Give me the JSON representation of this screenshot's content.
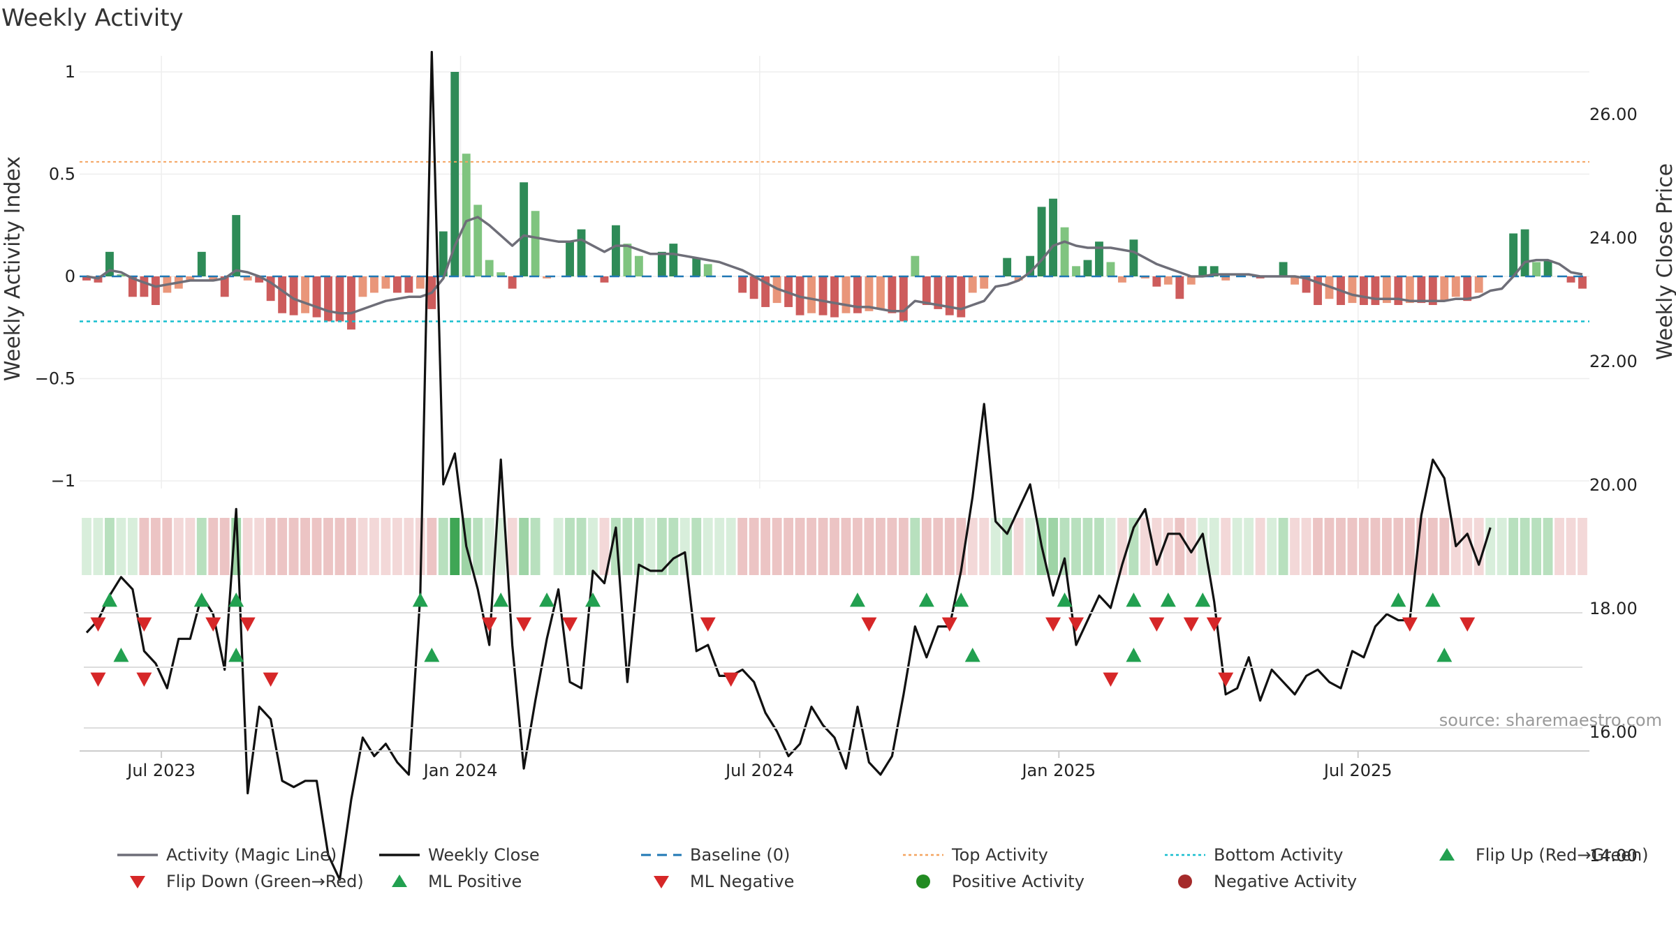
{
  "title": "Weekly Activity",
  "source": "source: sharemaestro.com",
  "colors": {
    "green_dark": "#2e8b57",
    "green_light": "#7fc47f",
    "red_dark": "#cd5c5c",
    "red_light": "#e9967a",
    "magic_line": "#6e6e78",
    "close_line": "#111111",
    "baseline": "#1f77b4",
    "top_activity": "#f4a460",
    "bottom_activity": "#17becf",
    "marker_up": "#22a050",
    "marker_down": "#d62728",
    "legend_pos": "#228b22",
    "legend_neg": "#a52a2a",
    "grid": "#eeeeee",
    "axis_text": "#222222",
    "source_text": "#999999"
  },
  "chart_data": {
    "type": "bar",
    "title": "Weekly Activity",
    "ylabel": "Weekly Activity Index",
    "y2label": "Weekly Close Price",
    "ylim": [
      -1.1,
      1.1
    ],
    "y2lim": [
      13.3,
      27.2
    ],
    "yticks": [
      1,
      0.5,
      0,
      -0.5,
      -1
    ],
    "ytick_labels": [
      "1",
      "0.5",
      "0",
      "−0.5",
      "−1"
    ],
    "y2ticks": [
      26,
      24,
      22,
      20,
      18,
      16,
      14
    ],
    "y2tick_labels": [
      "26.00",
      "24.00",
      "22.00",
      "20.00",
      "18.00",
      "16.00",
      "14.00"
    ],
    "xtick_labels": [
      "Jul 2023",
      "Jan 2024",
      "Jul 2024",
      "Jan 2025",
      "Jul 2025"
    ],
    "xtick_weeks": [
      6.5,
      32.5,
      58.5,
      84.5,
      110.5
    ],
    "top_activity": 0.56,
    "bottom_activity": -0.22,
    "baseline": 0,
    "activity": [
      -0.02,
      -0.03,
      0.12,
      0.01,
      -0.1,
      -0.1,
      -0.14,
      -0.08,
      -0.06,
      -0.02,
      0.12,
      -0.02,
      -0.1,
      0.3,
      -0.02,
      -0.03,
      -0.12,
      -0.18,
      -0.19,
      -0.18,
      -0.2,
      -0.22,
      -0.22,
      -0.26,
      -0.1,
      -0.08,
      -0.06,
      -0.08,
      -0.08,
      -0.06,
      -0.16,
      0.22,
      1.0,
      0.6,
      0.35,
      0.08,
      0.02,
      -0.06,
      0.46,
      0.32,
      -0.01,
      0.0,
      0.17,
      0.23,
      0.0,
      -0.03,
      0.25,
      0.16,
      0.1,
      0.0,
      0.12,
      0.16,
      0.0,
      0.09,
      0.06,
      0.0,
      0.0,
      -0.08,
      -0.11,
      -0.15,
      -0.13,
      -0.15,
      -0.19,
      -0.18,
      -0.19,
      -0.2,
      -0.18,
      -0.18,
      -0.17,
      -0.16,
      -0.18,
      -0.22,
      0.1,
      -0.14,
      -0.16,
      -0.19,
      -0.2,
      -0.08,
      -0.06,
      0.0,
      0.09,
      -0.02,
      0.1,
      0.34,
      0.38,
      0.24,
      0.05,
      0.08,
      0.17,
      0.07,
      -0.03,
      0.18,
      -0.01,
      -0.05,
      -0.04,
      -0.11,
      -0.04,
      0.05,
      0.05,
      -0.02,
      0.0,
      0.0,
      -0.01,
      0.0,
      0.07,
      -0.04,
      -0.08,
      -0.14,
      -0.11,
      -0.14,
      -0.13,
      -0.14,
      -0.14,
      -0.13,
      -0.14,
      -0.13,
      -0.13,
      -0.14,
      -0.12,
      -0.1,
      -0.12,
      -0.08,
      0.0,
      0.0,
      0.21,
      0.23,
      0.07,
      0.08,
      0.0,
      -0.03,
      -0.06
    ],
    "magic_line": [
      0.0,
      -0.01,
      0.03,
      0.02,
      -0.01,
      -0.03,
      -0.05,
      -0.04,
      -0.03,
      -0.02,
      -0.02,
      -0.02,
      -0.01,
      0.03,
      0.02,
      0.0,
      -0.03,
      -0.07,
      -0.11,
      -0.13,
      -0.15,
      -0.17,
      -0.18,
      -0.18,
      -0.16,
      -0.14,
      -0.12,
      -0.11,
      -0.1,
      -0.1,
      -0.08,
      -0.01,
      0.15,
      0.27,
      0.29,
      0.25,
      0.2,
      0.15,
      0.2,
      0.19,
      0.18,
      0.17,
      0.17,
      0.18,
      0.15,
      0.12,
      0.15,
      0.15,
      0.13,
      0.11,
      0.11,
      0.11,
      0.1,
      0.09,
      0.08,
      0.07,
      0.05,
      0.03,
      0.0,
      -0.03,
      -0.06,
      -0.08,
      -0.1,
      -0.11,
      -0.12,
      -0.13,
      -0.14,
      -0.15,
      -0.15,
      -0.16,
      -0.17,
      -0.17,
      -0.12,
      -0.13,
      -0.14,
      -0.15,
      -0.16,
      -0.14,
      -0.12,
      -0.05,
      -0.04,
      -0.02,
      0.02,
      0.08,
      0.15,
      0.17,
      0.15,
      0.14,
      0.14,
      0.14,
      0.13,
      0.12,
      0.09,
      0.06,
      0.04,
      0.02,
      0.0,
      0.0,
      0.01,
      0.01,
      0.01,
      0.01,
      0.0,
      0.0,
      0.0,
      0.0,
      -0.01,
      -0.03,
      -0.05,
      -0.07,
      -0.09,
      -0.1,
      -0.11,
      -0.11,
      -0.11,
      -0.12,
      -0.12,
      -0.12,
      -0.12,
      -0.11,
      -0.11,
      -0.1,
      -0.07,
      -0.06,
      0.0,
      0.07,
      0.08,
      0.08,
      0.06,
      0.02,
      0.01
    ],
    "close": [
      17.6,
      17.8,
      18.2,
      18.5,
      18.3,
      17.3,
      17.1,
      16.7,
      17.5,
      17.5,
      18.2,
      17.9,
      17.0,
      19.6,
      15.0,
      16.4,
      16.2,
      15.2,
      15.1,
      15.2,
      15.2,
      14.0,
      13.6,
      14.9,
      15.9,
      15.6,
      15.8,
      15.5,
      15.3,
      18.2,
      27.0,
      20.0,
      20.5,
      19.0,
      18.3,
      17.4,
      20.4,
      17.4,
      15.4,
      16.5,
      17.5,
      18.3,
      16.8,
      16.7,
      18.6,
      18.4,
      19.3,
      16.8,
      18.7,
      18.6,
      18.6,
      18.8,
      18.9,
      17.3,
      17.4,
      16.9,
      16.9,
      17.0,
      16.8,
      16.3,
      16.0,
      15.6,
      15.8,
      16.4,
      16.1,
      15.9,
      15.4,
      16.4,
      15.5,
      15.3,
      15.6,
      16.6,
      17.7,
      17.2,
      17.7,
      17.7,
      18.6,
      19.8,
      21.3,
      19.4,
      19.2,
      19.6,
      20.0,
      19.0,
      18.2,
      18.8,
      17.4,
      17.8,
      18.2,
      18.0,
      18.7,
      19.3,
      19.6,
      18.7,
      19.2,
      19.2,
      18.9,
      19.2,
      18.1,
      16.6,
      16.7,
      17.2,
      16.5,
      17.0,
      16.8,
      16.6,
      16.9,
      17.0,
      16.8,
      16.7,
      17.3,
      17.2,
      17.7,
      17.9,
      17.8,
      17.8,
      19.5,
      20.4,
      20.1,
      19.0,
      19.2,
      18.7,
      19.3
    ],
    "strip_shades": [
      1,
      1,
      2,
      1,
      1,
      -2,
      -2,
      -2,
      -1,
      -1,
      2,
      -2,
      -2,
      3,
      -1,
      -1,
      -2,
      -2,
      -2,
      -2,
      -2,
      -2,
      -2,
      -2,
      -1,
      -1,
      -1,
      -1,
      -1,
      -1,
      -2,
      2,
      4,
      3,
      2,
      1,
      1,
      -1,
      3,
      2,
      0,
      1,
      2,
      2,
      1,
      -1,
      2,
      2,
      2,
      1,
      2,
      2,
      1,
      2,
      1,
      1,
      1,
      -2,
      -2,
      -2,
      -2,
      -2,
      -2,
      -2,
      -2,
      -2,
      -2,
      -2,
      -2,
      -2,
      -2,
      -2,
      2,
      -2,
      -2,
      -2,
      -2,
      -1,
      -1,
      1,
      2,
      -1,
      1,
      3,
      3,
      2,
      2,
      2,
      2,
      1,
      -1,
      2,
      -1,
      -1,
      -1,
      -2,
      -1,
      1,
      1,
      -1,
      1,
      1,
      -1,
      1,
      2,
      -1,
      -1,
      -2,
      -2,
      -2,
      -2,
      -2,
      -2,
      -2,
      -2,
      -2,
      -2,
      -2,
      -2,
      -1,
      -1,
      -1,
      1,
      1,
      2,
      2,
      2,
      2,
      -1,
      -1,
      -1
    ],
    "flip_up_weeks": [
      2,
      10,
      13,
      29,
      36,
      40,
      44,
      67,
      73,
      76,
      85,
      91,
      94,
      97,
      114,
      117
    ],
    "flip_down_weeks": [
      1,
      5,
      11,
      14,
      35,
      38,
      42,
      54,
      68,
      75,
      84,
      86,
      93,
      96,
      98,
      115,
      120
    ],
    "ml_positive_weeks": [
      3,
      13,
      30,
      77,
      91,
      118
    ],
    "ml_negative_weeks": [
      1,
      5,
      16,
      56,
      89,
      99
    ]
  },
  "legend": [
    {
      "label": "Activity (Magic Line)",
      "kind": "line",
      "color": "#6e6e78"
    },
    {
      "label": "Weekly Close",
      "kind": "line",
      "color": "#111111"
    },
    {
      "label": "Baseline (0)",
      "kind": "dash",
      "color": "#1f77b4"
    },
    {
      "label": "Top Activity",
      "kind": "dot",
      "color": "#f4a460"
    },
    {
      "label": "Bottom Activity",
      "kind": "dot",
      "color": "#17becf"
    },
    {
      "label": "Flip Up (Red→Green)",
      "kind": "up",
      "color": "#22a050"
    },
    {
      "label": "Flip Down (Green→Red)",
      "kind": "down",
      "color": "#d62728"
    },
    {
      "label": "ML Positive",
      "kind": "up",
      "color": "#22a050"
    },
    {
      "label": "ML Negative",
      "kind": "down",
      "color": "#d62728"
    },
    {
      "label": "Positive Activity",
      "kind": "circle",
      "color": "#228b22"
    },
    {
      "label": "Negative Activity",
      "kind": "circle",
      "color": "#a52a2a"
    }
  ]
}
